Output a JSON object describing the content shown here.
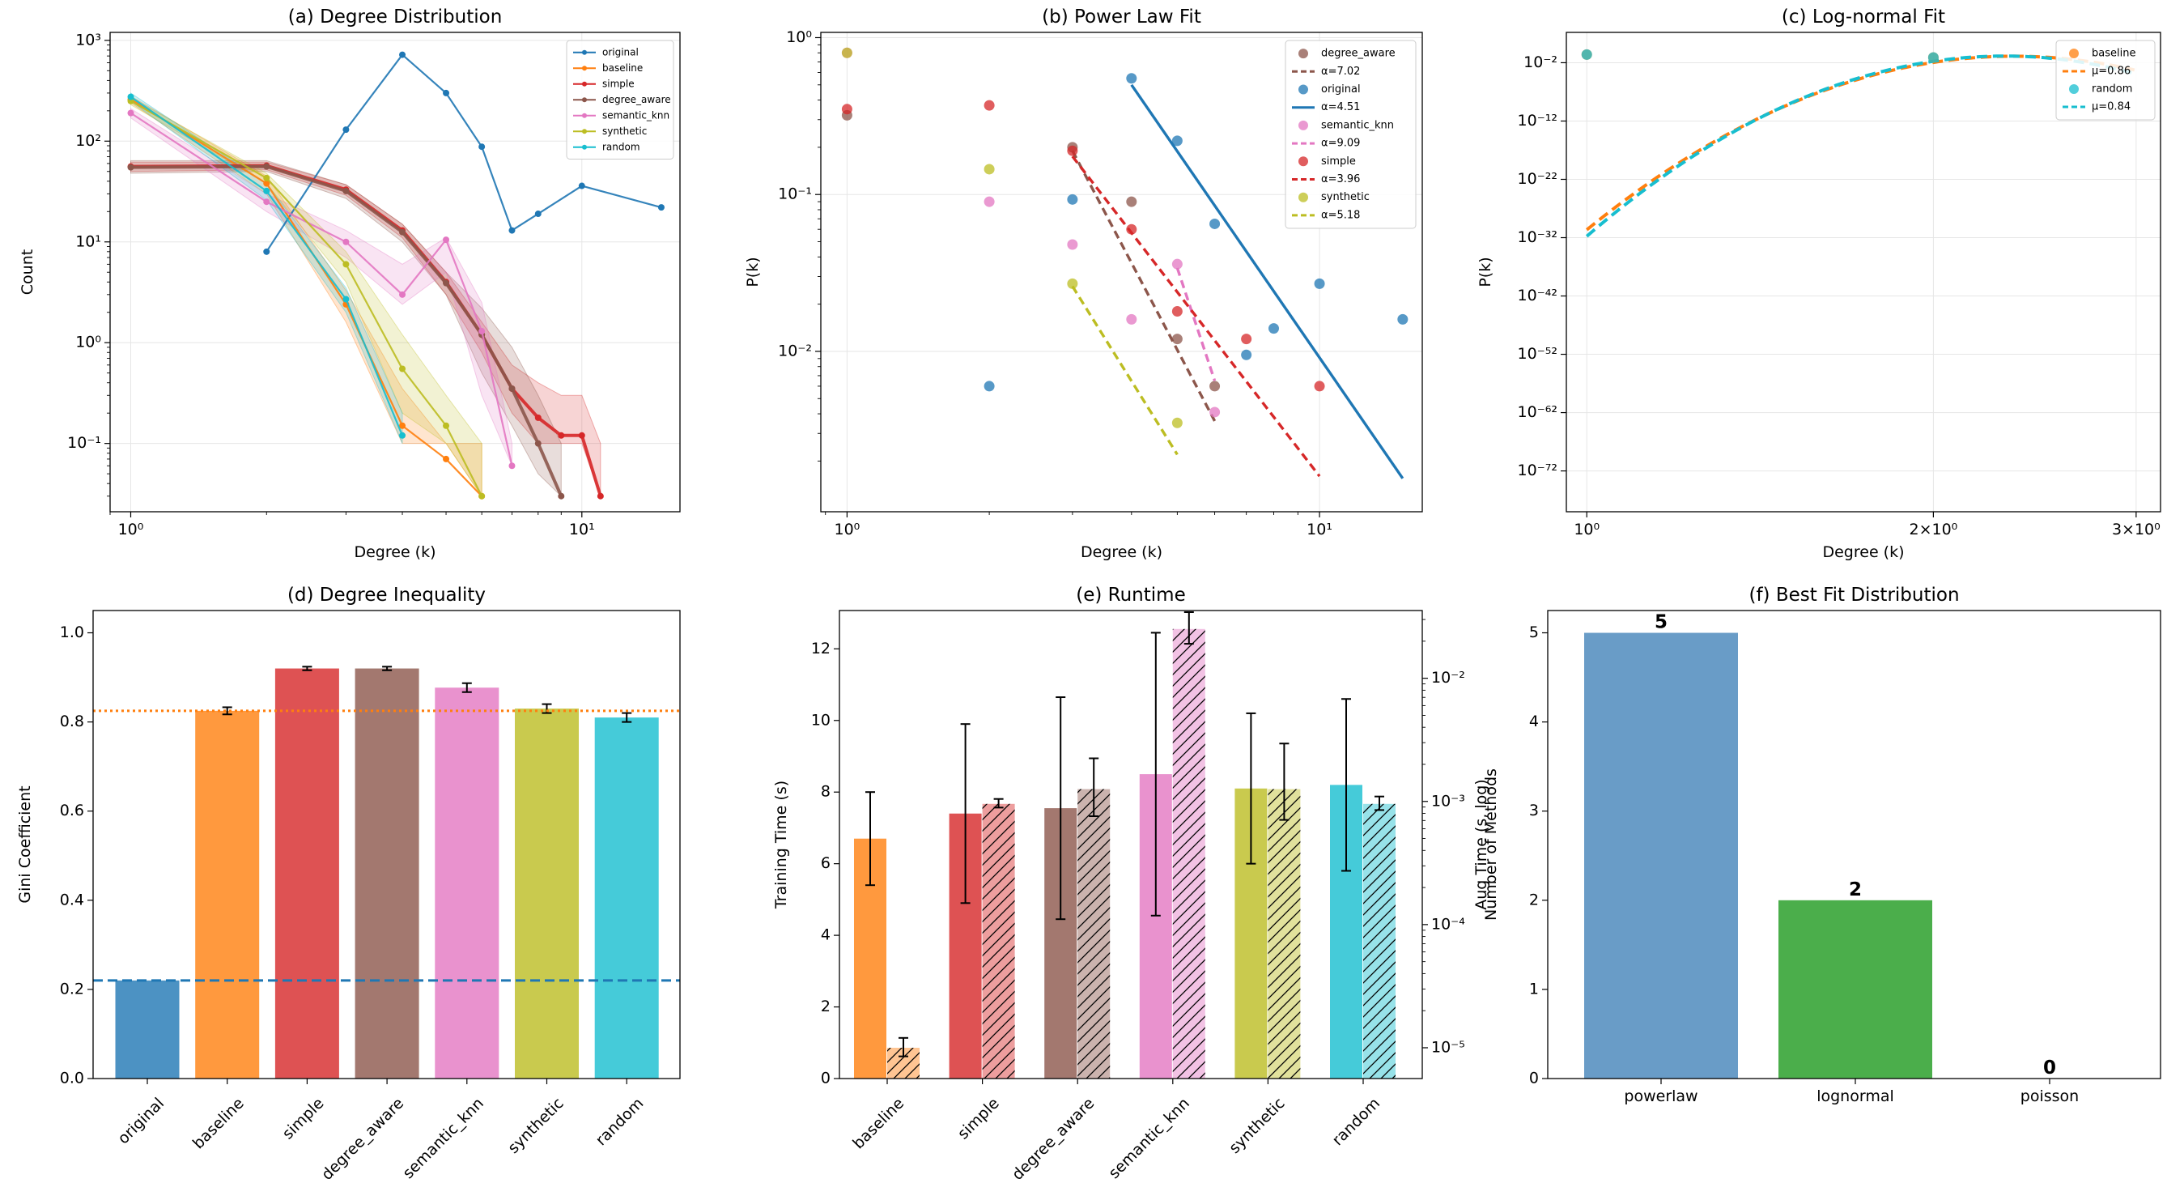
{
  "colors": {
    "original": "#1f77b4",
    "baseline": "#ff7f0e",
    "simple": "#d62728",
    "degree_aware": "#8c564b",
    "semantic_knn": "#e377c2",
    "synthetic": "#bcbd22",
    "random": "#17becf",
    "powerlaw_bar": "#4f8bbd",
    "lognormal_bar": "#2ca02c"
  },
  "chart_data": [
    {
      "id": "a",
      "type": "line",
      "title": "(a) Degree Distribution",
      "xlabel": "Degree (k)",
      "ylabel": "Count",
      "xscale": "log",
      "yscale": "log",
      "xlim": [
        0.9,
        16.5
      ],
      "ylim": [
        0.021,
        1200
      ],
      "x_ticks": [
        {
          "v": 1,
          "label": "10⁰"
        },
        {
          "v": 10,
          "label": "10¹"
        }
      ],
      "y_ticks": [
        {
          "v": 0.1,
          "label": "10⁻¹"
        },
        {
          "v": 1,
          "label": "10⁰"
        },
        {
          "v": 10,
          "label": "10¹"
        },
        {
          "v": 100,
          "label": "10²"
        },
        {
          "v": 1000,
          "label": "10³"
        }
      ],
      "legend": "top-right",
      "series": [
        {
          "name": "original",
          "x": [
            2,
            3,
            4,
            5,
            6,
            7,
            8,
            10,
            15
          ],
          "y": [
            8,
            130,
            720,
            300,
            88,
            13,
            19,
            36,
            22
          ]
        },
        {
          "name": "baseline",
          "x": [
            1,
            2,
            3,
            4,
            5,
            6
          ],
          "y": [
            260,
            38,
            2.4,
            0.15,
            0.07,
            0.03
          ],
          "band_lo": [
            240,
            30,
            1.6,
            0.1,
            0.1,
            0.03
          ],
          "band_hi": [
            280,
            45,
            3.3,
            0.35,
            0.1,
            0.1
          ]
        },
        {
          "name": "simple",
          "x": [
            1,
            2,
            3,
            4,
            5,
            6,
            7,
            8,
            9,
            10,
            11
          ],
          "y": [
            56,
            57,
            33,
            13,
            4,
            1.2,
            0.35,
            0.18,
            0.12,
            0.12,
            0.03
          ],
          "band_lo": [
            50,
            52,
            29,
            11,
            3,
            0.8,
            0.2,
            0.1,
            0.1,
            0.1,
            0.03
          ],
          "band_hi": [
            62,
            62,
            37,
            15,
            5,
            1.6,
            0.6,
            0.4,
            0.3,
            0.3,
            0.1
          ]
        },
        {
          "name": "degree_aware",
          "x": [
            1,
            2,
            3,
            4,
            5,
            6,
            7,
            8,
            9
          ],
          "y": [
            55,
            56,
            32,
            12.5,
            3.9,
            1.2,
            0.35,
            0.1,
            0.03
          ],
          "band_lo": [
            48,
            50,
            27,
            10,
            3,
            0.5,
            0.15,
            0.05,
            0.03
          ],
          "band_hi": [
            64,
            64,
            37,
            15,
            5,
            2.2,
            0.9,
            0.3,
            0.1
          ]
        },
        {
          "name": "semantic_knn",
          "x": [
            1,
            2,
            3,
            4,
            5,
            6,
            7
          ],
          "y": [
            190,
            25,
            10,
            3,
            10.5,
            1.3,
            0.06
          ],
          "band_lo": [
            170,
            20,
            7,
            2.4,
            5,
            0.3,
            0.06
          ],
          "band_hi": [
            210,
            30,
            13,
            6,
            11,
            2.5,
            0.1
          ]
        },
        {
          "name": "synthetic",
          "x": [
            1,
            2,
            3,
            4,
            5,
            6
          ],
          "y": [
            250,
            43,
            6,
            0.55,
            0.15,
            0.03
          ],
          "band_lo": [
            230,
            38,
            4,
            0.2,
            0.1,
            0.03
          ],
          "band_hi": [
            270,
            48,
            8,
            1.2,
            0.3,
            0.1
          ]
        },
        {
          "name": "random",
          "x": [
            1,
            2,
            3,
            4
          ],
          "y": [
            275,
            32,
            2.7,
            0.12
          ],
          "band_lo": [
            250,
            26,
            2,
            0.1
          ],
          "band_hi": [
            300,
            38,
            3.5,
            0.2
          ]
        }
      ]
    },
    {
      "id": "b",
      "type": "scatter",
      "title": "(b) Power Law Fit",
      "xlabel": "Degree (k)",
      "ylabel": "P(k)",
      "xscale": "log",
      "yscale": "log",
      "xlim": [
        0.88,
        16.5
      ],
      "ylim": [
        0.00095,
        1.08
      ],
      "x_ticks": [
        {
          "v": 1,
          "label": "10⁰"
        },
        {
          "v": 10,
          "label": "10¹"
        }
      ],
      "y_ticks": [
        {
          "v": 0.01,
          "label": "10⁻²"
        },
        {
          "v": 0.1,
          "label": "10⁻¹"
        },
        {
          "v": 1,
          "label": "10⁰"
        }
      ],
      "legend": "top-right",
      "series": [
        {
          "name": "degree_aware",
          "x": [
            1,
            3,
            4,
            5,
            6
          ],
          "y": [
            0.32,
            0.2,
            0.09,
            0.012,
            0.006
          ],
          "fit_label": "α=7.02",
          "fit_x": [
            3,
            6
          ],
          "fit_y": [
            0.19,
            0.0036
          ]
        },
        {
          "name": "original",
          "x": [
            2,
            3,
            4,
            5,
            6,
            7,
            8,
            10,
            15
          ],
          "y": [
            0.006,
            0.093,
            0.55,
            0.22,
            0.065,
            0.0095,
            0.014,
            0.027,
            0.016
          ],
          "fit_label": "α=4.51",
          "fit_x": [
            4,
            15
          ],
          "fit_y": [
            0.5,
            0.00155
          ]
        },
        {
          "name": "semantic_knn",
          "x": [
            1,
            2,
            3,
            4,
            5,
            6
          ],
          "y": [
            0.8,
            0.09,
            0.048,
            0.016,
            0.036,
            0.0041
          ],
          "fit_label": "α=9.09",
          "fit_x": [
            5,
            6
          ],
          "fit_y": [
            0.034,
            0.0065
          ]
        },
        {
          "name": "simple",
          "x": [
            1,
            2,
            3,
            4,
            5,
            7,
            10
          ],
          "y": [
            0.35,
            0.37,
            0.19,
            0.06,
            0.018,
            0.012,
            0.006
          ],
          "fit_label": "α=3.96",
          "fit_x": [
            3,
            10
          ],
          "fit_y": [
            0.175,
            0.0016
          ]
        },
        {
          "name": "synthetic",
          "x": [
            1,
            2,
            3,
            5
          ],
          "y": [
            0.8,
            0.145,
            0.027,
            0.0035
          ],
          "fit_label": "α=5.18",
          "fit_x": [
            3,
            5
          ],
          "fit_y": [
            0.026,
            0.0022
          ]
        }
      ]
    },
    {
      "id": "c",
      "type": "scatter",
      "title": "(c) Log-normal Fit",
      "xlabel": "Degree (k)",
      "ylabel": "P(k)",
      "xscale": "log",
      "yscale": "log-exponent",
      "xlim": [
        0.96,
        3.15
      ],
      "ylim": [
        -79,
        3.2
      ],
      "x_ticks": [
        {
          "v": 1,
          "label": "10⁰"
        },
        {
          "v": 2,
          "label": "2×10⁰"
        },
        {
          "v": 3,
          "label": "3×10⁰"
        }
      ],
      "y_ticks": [
        {
          "v": -72,
          "label": "10⁻⁷²"
        },
        {
          "v": -62,
          "label": "10⁻⁶²"
        },
        {
          "v": -52,
          "label": "10⁻⁵²"
        },
        {
          "v": -42,
          "label": "10⁻⁴²"
        },
        {
          "v": -32,
          "label": "10⁻³²"
        },
        {
          "v": -22,
          "label": "10⁻²²"
        },
        {
          "v": -12,
          "label": "10⁻¹²"
        },
        {
          "v": -2,
          "label": "10⁻²"
        }
      ],
      "legend": "top-right",
      "series": [
        {
          "name": "baseline",
          "points_x": [
            1,
            2
          ],
          "points_log10y": [
            -0.6,
            -1.1
          ],
          "fit_label": "μ=0.86",
          "fit_mu": 0.86,
          "fit_sigma": 0.073
        },
        {
          "name": "random",
          "points_x": [
            1,
            2
          ],
          "points_log10y": [
            -0.6,
            -1.1
          ],
          "fit_label": "μ=0.84",
          "fit_mu": 0.84,
          "fit_sigma": 0.07
        }
      ]
    },
    {
      "id": "d",
      "type": "bar",
      "title": "(d) Degree Inequality",
      "xlabel": "",
      "ylabel": "Gini Coefficient",
      "ylim": [
        0,
        1.05
      ],
      "y_ticks": [
        {
          "v": 0,
          "label": "0.0"
        },
        {
          "v": 0.2,
          "label": "0.2"
        },
        {
          "v": 0.4,
          "label": "0.4"
        },
        {
          "v": 0.6,
          "label": "0.6"
        },
        {
          "v": 0.8,
          "label": "0.8"
        },
        {
          "v": 1.0,
          "label": "1.0"
        }
      ],
      "categories": [
        "original",
        "baseline",
        "simple",
        "degree_aware",
        "semantic_knn",
        "synthetic",
        "random"
      ],
      "values": [
        0.22,
        0.825,
        0.92,
        0.92,
        0.877,
        0.83,
        0.81
      ],
      "errors": [
        0,
        0.008,
        0.004,
        0.004,
        0.01,
        0.01,
        0.01
      ],
      "hlines": [
        {
          "value": 0.22,
          "series": "original",
          "style": "dashed"
        },
        {
          "value": 0.825,
          "series": "baseline",
          "style": "dotted"
        }
      ]
    },
    {
      "id": "e",
      "type": "bar",
      "title": "(e) Runtime",
      "xlabel": "",
      "ylabel": "Training Time (s)",
      "y2label": "Aug Time (s, log)",
      "ylim": [
        0,
        13.07
      ],
      "y2lim_log10": [
        -5.25,
        -1.45
      ],
      "y_ticks": [
        {
          "v": 0,
          "label": "0"
        },
        {
          "v": 2,
          "label": "2"
        },
        {
          "v": 4,
          "label": "4"
        },
        {
          "v": 6,
          "label": "6"
        },
        {
          "v": 8,
          "label": "8"
        },
        {
          "v": 10,
          "label": "10"
        },
        {
          "v": 12,
          "label": "12"
        }
      ],
      "y2_ticks": [
        {
          "v": -5,
          "label": "10⁻⁵"
        },
        {
          "v": -4,
          "label": "10⁻⁴"
        },
        {
          "v": -3,
          "label": "10⁻³"
        },
        {
          "v": -2,
          "label": "10⁻²"
        }
      ],
      "categories": [
        "baseline",
        "simple",
        "degree_aware",
        "semantic_knn",
        "synthetic",
        "random"
      ],
      "train_values": [
        6.7,
        7.4,
        7.55,
        8.5,
        8.1,
        8.2
      ],
      "train_errors": [
        1.3,
        2.5,
        3.1,
        3.95,
        2.1,
        2.4
      ],
      "aug_log10_values": [
        -5.0,
        -3.02,
        -2.9,
        -1.6,
        -2.9,
        -3.02
      ],
      "aug_log10_lo": [
        -5.07,
        -3.05,
        -3.12,
        -1.72,
        -3.15,
        -3.07
      ],
      "aug_log10_hi": [
        -4.92,
        -2.98,
        -2.65,
        -1.45,
        -2.53,
        -2.96
      ]
    },
    {
      "id": "f",
      "type": "bar",
      "title": "(f) Best Fit Distribution",
      "xlabel": "",
      "ylabel": "Number of Methods",
      "ylim": [
        0,
        5.25
      ],
      "y_ticks": [
        {
          "v": 0,
          "label": "0"
        },
        {
          "v": 1,
          "label": "1"
        },
        {
          "v": 2,
          "label": "2"
        },
        {
          "v": 3,
          "label": "3"
        },
        {
          "v": 4,
          "label": "4"
        },
        {
          "v": 5,
          "label": "5"
        }
      ],
      "categories": [
        "powerlaw",
        "lognormal",
        "poisson"
      ],
      "values": [
        5,
        2,
        0
      ],
      "value_labels": [
        "5",
        "2",
        "0"
      ]
    }
  ]
}
